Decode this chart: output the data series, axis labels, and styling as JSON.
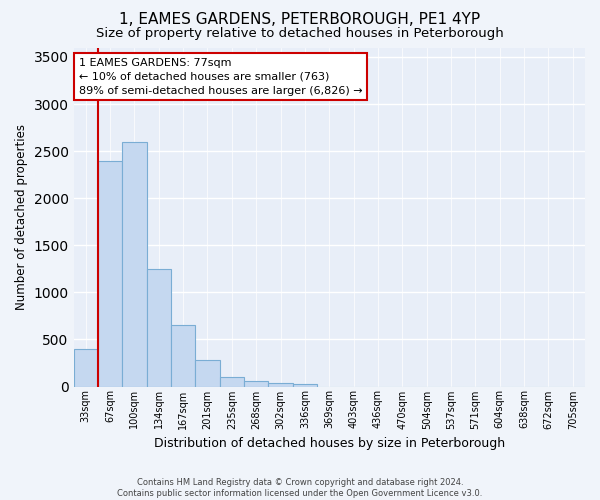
{
  "title": "1, EAMES GARDENS, PETERBOROUGH, PE1 4YP",
  "subtitle": "Size of property relative to detached houses in Peterborough",
  "xlabel": "Distribution of detached houses by size in Peterborough",
  "ylabel": "Number of detached properties",
  "footer_line1": "Contains HM Land Registry data © Crown copyright and database right 2024.",
  "footer_line2": "Contains public sector information licensed under the Open Government Licence v3.0.",
  "categories": [
    "33sqm",
    "67sqm",
    "100sqm",
    "134sqm",
    "167sqm",
    "201sqm",
    "235sqm",
    "268sqm",
    "302sqm",
    "336sqm",
    "369sqm",
    "403sqm",
    "436sqm",
    "470sqm",
    "504sqm",
    "537sqm",
    "571sqm",
    "604sqm",
    "638sqm",
    "672sqm",
    "705sqm"
  ],
  "bar_values": [
    400,
    2400,
    2600,
    1250,
    650,
    280,
    100,
    55,
    40,
    30,
    0,
    0,
    0,
    0,
    0,
    0,
    0,
    0,
    0,
    0,
    0
  ],
  "bar_color": "#c5d8f0",
  "bar_edge_color": "#7aadd4",
  "vline_x_index": 1,
  "vline_color": "#cc0000",
  "annotation_text": "1 EAMES GARDENS: 77sqm\n← 10% of detached houses are smaller (763)\n89% of semi-detached houses are larger (6,826) →",
  "annotation_box_color": "#ffffff",
  "annotation_box_edge_color": "#cc0000",
  "ylim": [
    0,
    3600
  ],
  "yticks": [
    0,
    500,
    1000,
    1500,
    2000,
    2500,
    3000,
    3500
  ],
  "bg_color": "#f0f4fa",
  "plot_bg_color": "#e8eef8",
  "grid_color": "#ffffff",
  "title_fontsize": 11,
  "subtitle_fontsize": 9.5,
  "title_fontweight": "normal"
}
